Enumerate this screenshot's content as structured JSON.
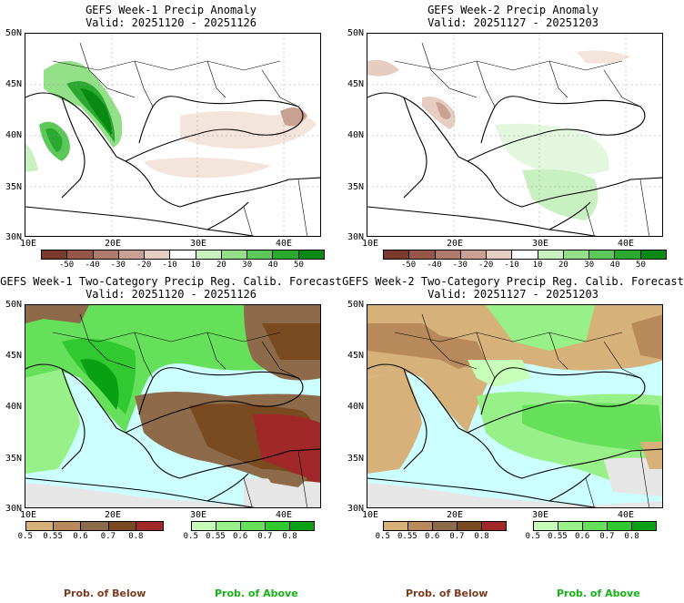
{
  "panels": [
    {
      "title": "GEFS Week-1 Precip Anomaly",
      "valid": "Valid: 20251120 - 20251126"
    },
    {
      "title": "GEFS Week-2 Precip Anomaly",
      "valid": "Valid: 20251127 - 20251203"
    },
    {
      "title": "GEFS Week-1 Two-Category Precip Reg. Calib. Forecast",
      "valid": "Valid: 20251120 - 20251126"
    },
    {
      "title": "GEFS Week-2 Two-Category Precip Reg. Calib. Forecast",
      "valid": "Valid: 20251127 - 20251203"
    }
  ],
  "axes": {
    "lat_labels": [
      "50N",
      "45N",
      "40N",
      "35N",
      "30N"
    ],
    "lon_labels": [
      "10E",
      "20E",
      "30E",
      "40E"
    ]
  },
  "anomaly_legend": {
    "ticks": [
      "-50",
      "-40",
      "-30",
      "-20",
      "-10",
      "10",
      "20",
      "30",
      "40",
      "50"
    ],
    "colors": [
      "#7a3b2e",
      "#94574a",
      "#ad7a6c",
      "#c9a193",
      "#e5cdc2",
      "#ffffff",
      "#c8f0c0",
      "#94e088",
      "#5cc85a",
      "#2aa830",
      "#0a8a12"
    ]
  },
  "prob_legend": {
    "below_ticks": [
      "0.5",
      "0.55",
      "0.6",
      "0.7",
      "0.8"
    ],
    "above_ticks": [
      "0.5",
      "0.55",
      "0.6",
      "0.7",
      "0.8"
    ],
    "below_colors": [
      "#d6b27a",
      "#b8895a",
      "#8c6a4a",
      "#7a4a20",
      "#a02828"
    ],
    "above_colors": [
      "#c8ffb8",
      "#98f088",
      "#66e05a",
      "#32c832",
      "#0aa014"
    ]
  },
  "bottom_labels": {
    "below": "Prob. of Below",
    "above": "Prob. of Above"
  },
  "colors": {
    "below_text": "#7a3b1e",
    "above_text": "#14b414",
    "water": "#ccffff",
    "nodata": "#e6e6e6"
  }
}
